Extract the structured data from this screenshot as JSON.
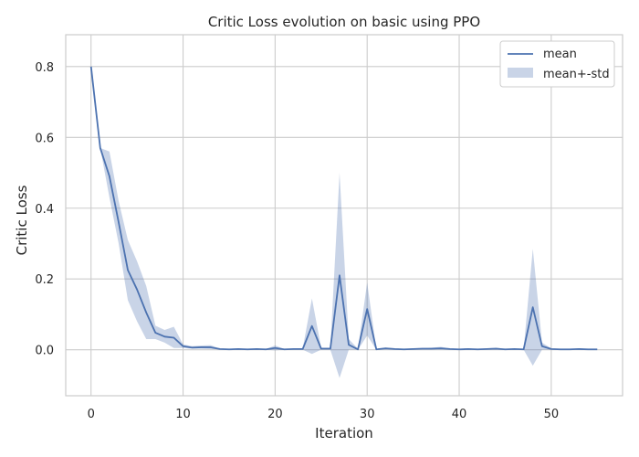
{
  "chart_data": {
    "type": "line",
    "title": "Critic Loss evolution on basic using PPO",
    "xlabel": "Iteration",
    "ylabel": "Critic Loss",
    "xlim": [
      -2.75,
      57.75
    ],
    "ylim": [
      -0.13,
      0.89
    ],
    "xticks": [
      0,
      10,
      20,
      30,
      40,
      50
    ],
    "yticks": [
      0.0,
      0.2,
      0.4,
      0.6,
      0.8
    ],
    "ytick_labels": [
      "0.0",
      "0.2",
      "0.4",
      "0.6",
      "0.8"
    ],
    "grid": true,
    "legend": {
      "position": "top-right",
      "entries": [
        "mean",
        "mean+-std"
      ]
    },
    "colors": {
      "line": "#4c72b0",
      "band": "#4c72b0",
      "grid": "#cccccc",
      "spine": "#cccccc"
    },
    "x": [
      0,
      1,
      2,
      3,
      4,
      5,
      6,
      7,
      8,
      9,
      10,
      11,
      12,
      13,
      14,
      15,
      16,
      17,
      18,
      19,
      20,
      21,
      22,
      23,
      24,
      25,
      26,
      27,
      28,
      29,
      30,
      31,
      32,
      33,
      34,
      35,
      36,
      37,
      38,
      39,
      40,
      41,
      42,
      43,
      44,
      45,
      46,
      47,
      48,
      49,
      50,
      51,
      52,
      53,
      54,
      55
    ],
    "series": [
      {
        "name": "mean",
        "values": [
          0.8,
          0.57,
          0.49,
          0.36,
          0.225,
          0.17,
          0.105,
          0.048,
          0.037,
          0.034,
          0.01,
          0.006,
          0.007,
          0.007,
          0.002,
          0.001,
          0.002,
          0.001,
          0.002,
          0.001,
          0.005,
          0.001,
          0.002,
          0.002,
          0.067,
          0.003,
          0.003,
          0.21,
          0.014,
          0.001,
          0.115,
          0.001,
          0.004,
          0.002,
          0.001,
          0.002,
          0.003,
          0.003,
          0.004,
          0.002,
          0.001,
          0.002,
          0.001,
          0.002,
          0.003,
          0.001,
          0.002,
          0.001,
          0.12,
          0.01,
          0.002,
          0.001,
          0.001,
          0.002,
          0.001,
          0.001
        ]
      },
      {
        "name": "mean+-std",
        "lower": [
          0.8,
          0.57,
          0.43,
          0.3,
          0.14,
          0.08,
          0.03,
          0.03,
          0.02,
          0.005,
          0.005,
          0.003,
          0.003,
          0.002,
          0.001,
          0.0,
          0.0,
          0.0,
          0.0,
          0.0,
          -0.002,
          0.0,
          0.0,
          0.0,
          -0.012,
          0.0,
          0.0,
          -0.08,
          0.0,
          0.0,
          0.04,
          0.0,
          0.0,
          0.0,
          0.0,
          0.0,
          0.0,
          0.0,
          0.0,
          0.0,
          0.0,
          0.0,
          0.0,
          0.0,
          0.0,
          0.0,
          0.0,
          0.0,
          -0.045,
          0.0,
          0.0,
          0.0,
          0.0,
          0.0,
          0.0,
          0.0
        ],
        "upper": [
          0.8,
          0.57,
          0.56,
          0.42,
          0.31,
          0.25,
          0.18,
          0.068,
          0.056,
          0.065,
          0.015,
          0.01,
          0.012,
          0.013,
          0.003,
          0.002,
          0.004,
          0.002,
          0.003,
          0.002,
          0.012,
          0.002,
          0.003,
          0.004,
          0.145,
          0.006,
          0.006,
          0.5,
          0.03,
          0.003,
          0.19,
          0.002,
          0.006,
          0.004,
          0.002,
          0.004,
          0.005,
          0.006,
          0.008,
          0.004,
          0.002,
          0.004,
          0.002,
          0.004,
          0.006,
          0.002,
          0.004,
          0.002,
          0.285,
          0.02,
          0.004,
          0.002,
          0.002,
          0.004,
          0.002,
          0.002
        ]
      }
    ]
  }
}
